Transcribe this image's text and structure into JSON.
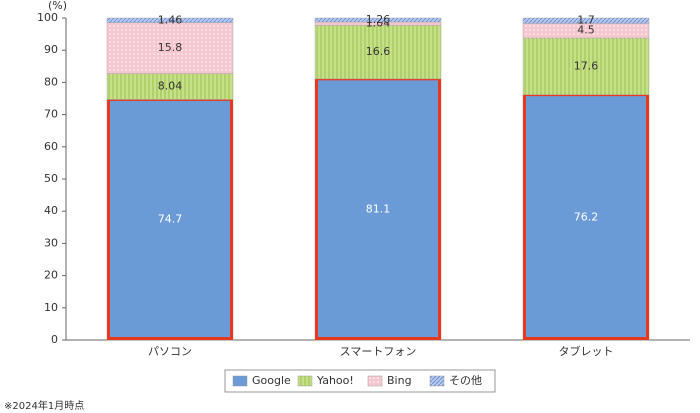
{
  "chart_data": {
    "type": "stacked_bar",
    "y_label": "(%)",
    "categories": [
      "パソコン",
      "スマートフォン",
      "タブレット"
    ],
    "series": [
      {
        "name": "Google",
        "color": "#6b9bd6",
        "pattern": "solid",
        "values": [
          74.7,
          81.1,
          76.2
        ]
      },
      {
        "name": "Yahoo!",
        "color": "#c6e08a",
        "pattern": "vertical",
        "values": [
          8.04,
          16.6,
          17.6
        ]
      },
      {
        "name": "Bing",
        "color": "#f8c6cf",
        "pattern": "dots",
        "values": [
          15.8,
          1.04,
          4.5
        ]
      },
      {
        "name": "その他",
        "color": "#b7c9ee",
        "pattern": "diagonal",
        "values": [
          1.46,
          1.26,
          1.7
        ]
      }
    ],
    "highlight_color": "#e8391f",
    "ylim": [
      0,
      100
    ],
    "yticks": [
      0,
      10,
      20,
      30,
      40,
      50,
      60,
      70,
      80,
      90,
      100
    ],
    "grid": false,
    "legend": "bottom",
    "footnote": "※2024年1月時点"
  }
}
